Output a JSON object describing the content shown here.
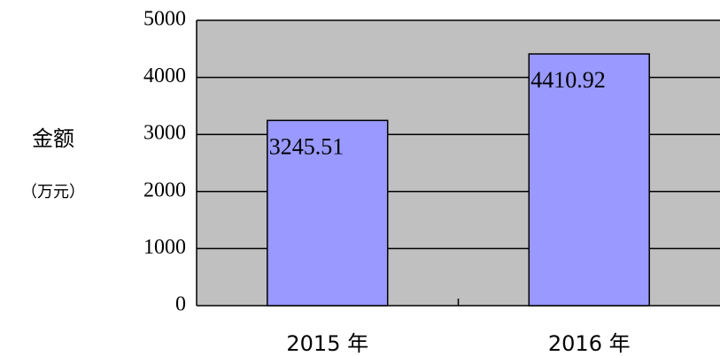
{
  "chart_data": {
    "type": "bar",
    "y_label": "金额",
    "y_unit": "（万元）",
    "categories": [
      "2015 年",
      "2016 年"
    ],
    "values": [
      3245.51,
      4410.92
    ],
    "color": "#9999ff",
    "background": "#c0c0c0",
    "ylim": [
      0,
      5000
    ],
    "yticks": [
      0,
      1000,
      2000,
      3000,
      4000,
      5000
    ],
    "grid": true
  }
}
